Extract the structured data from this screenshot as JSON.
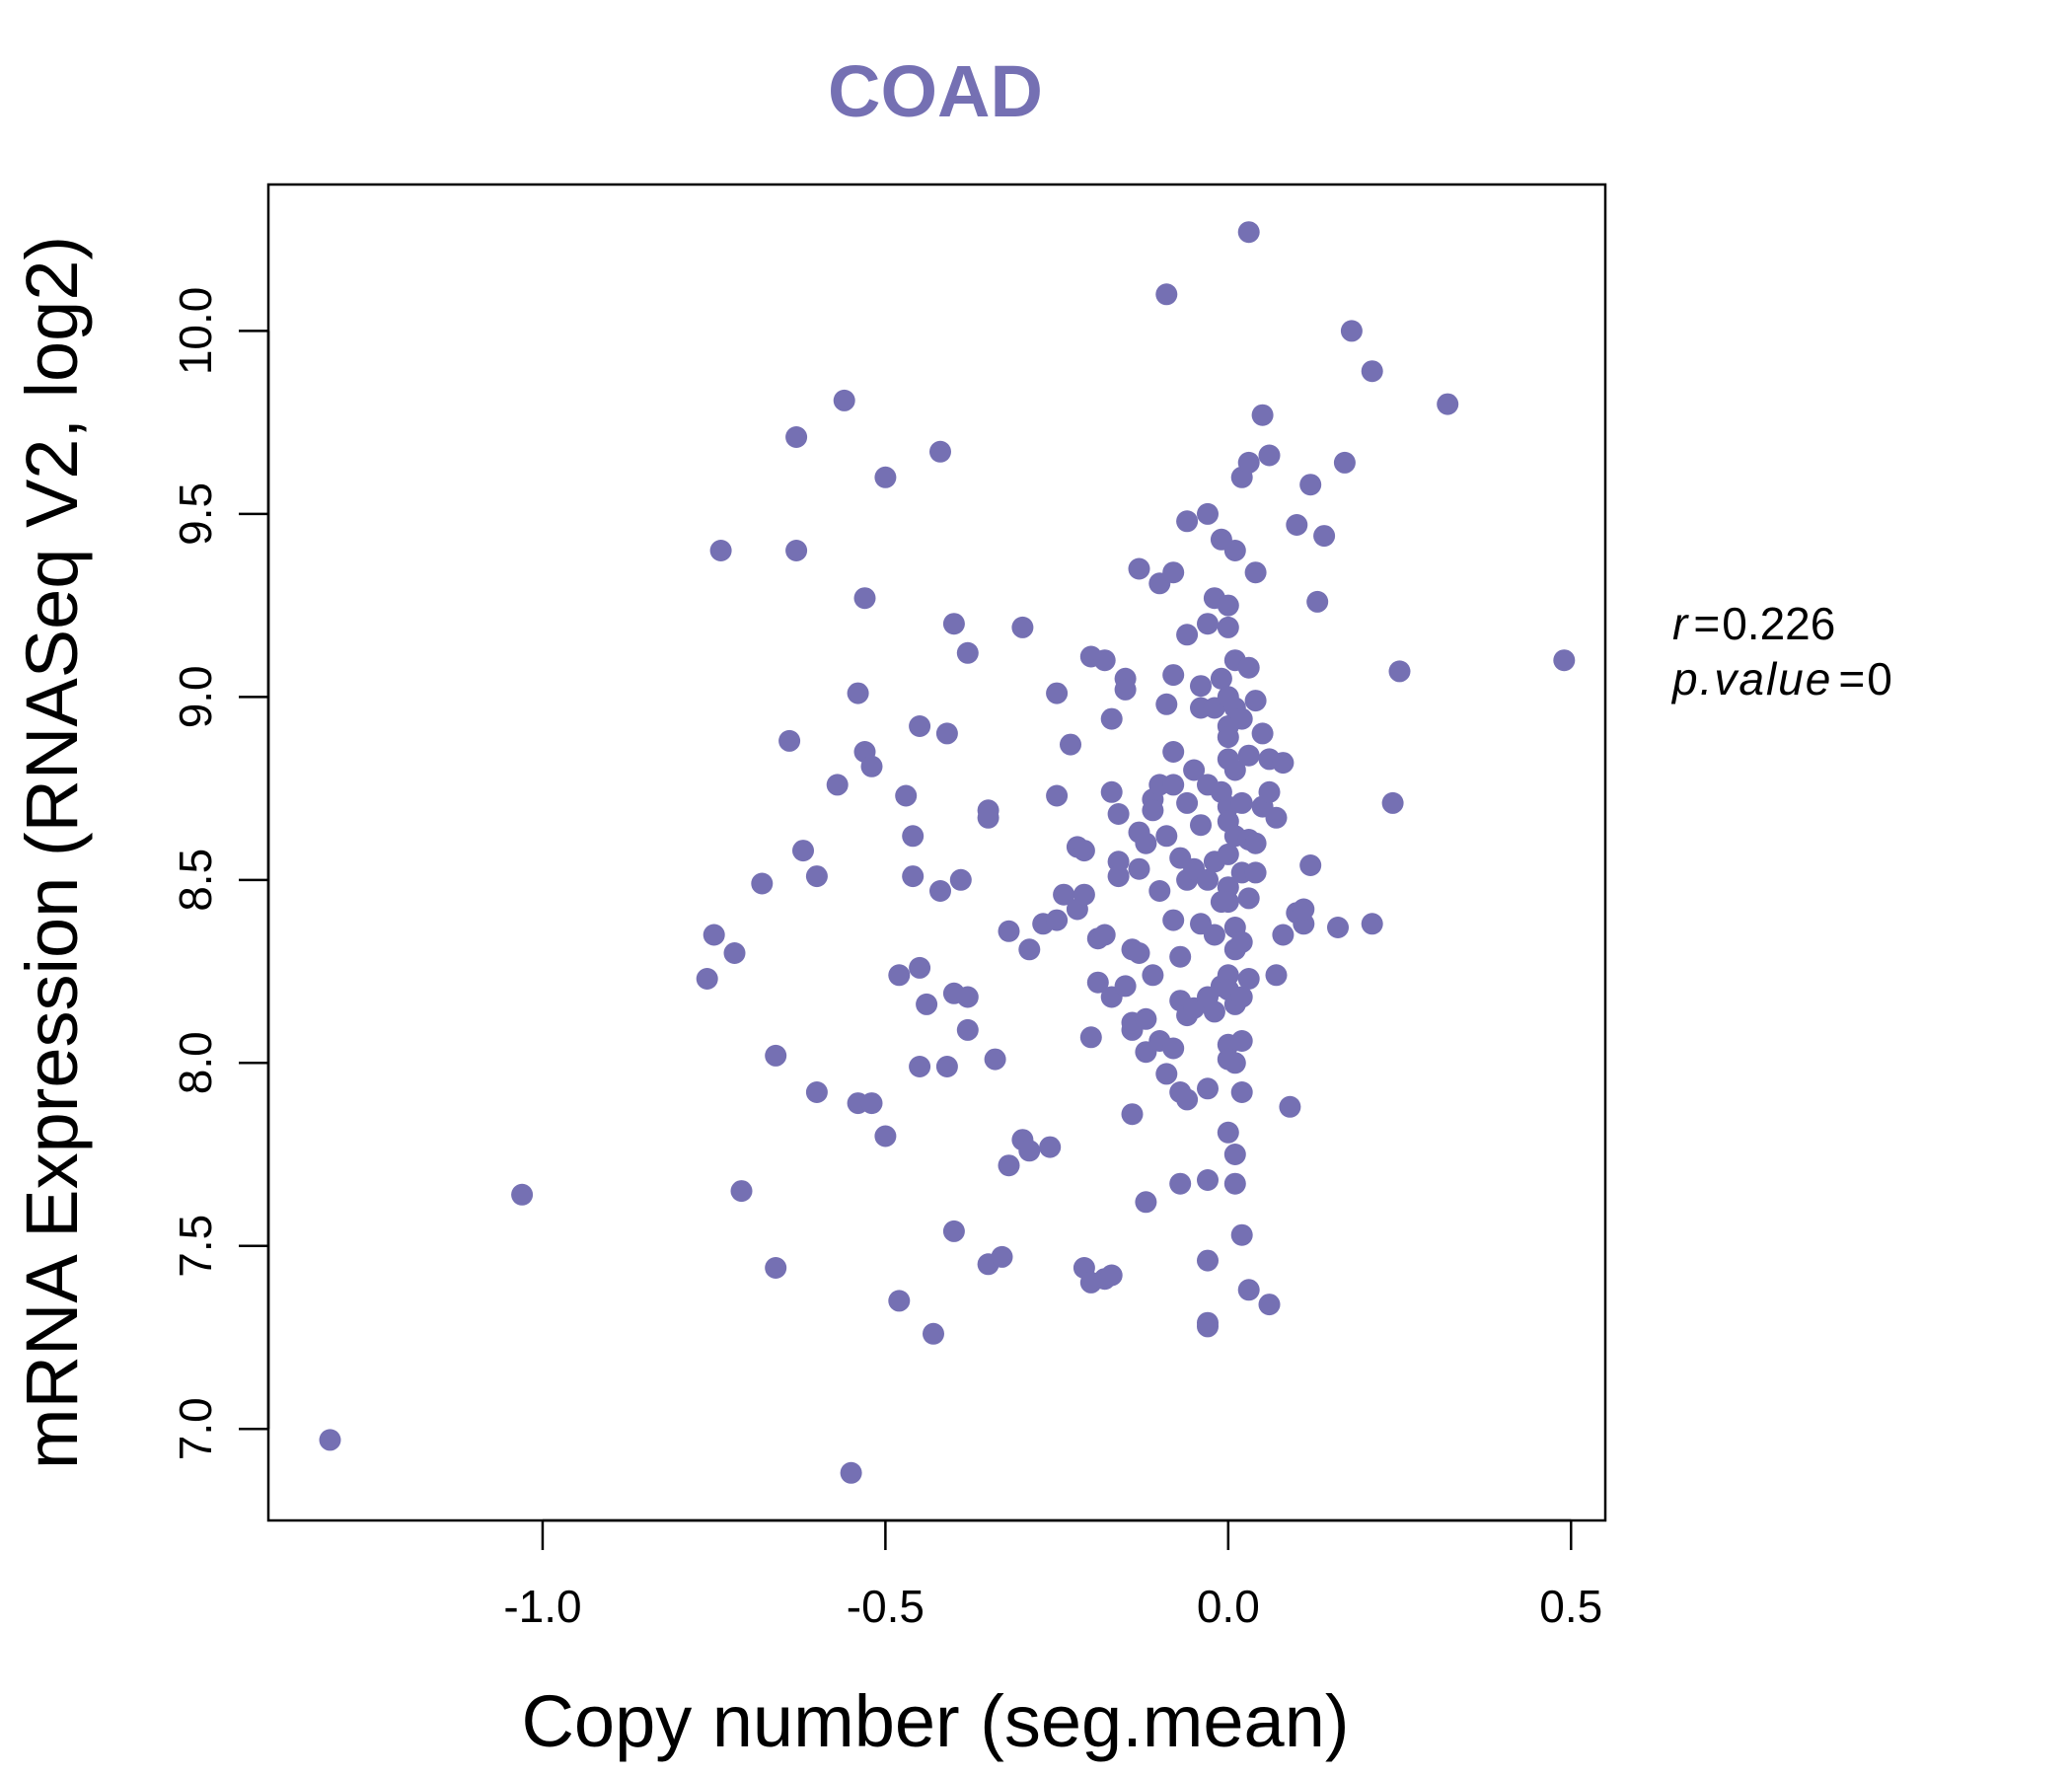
{
  "chart_data": {
    "type": "scatter",
    "title": "COAD",
    "xlabel": "Copy number (seg.mean)",
    "ylabel": "mRNA Expression (RNASeq V2, log2)",
    "xlim": [
      -1.4,
      0.55
    ],
    "ylim": [
      6.75,
      10.4
    ],
    "xticks": [
      -1.0,
      -0.5,
      0.0,
      0.5
    ],
    "xtick_labels": [
      "-1.0",
      "-0.5",
      "0.0",
      "0.5"
    ],
    "yticks": [
      7.0,
      7.5,
      8.0,
      8.5,
      9.0,
      9.5,
      10.0
    ],
    "ytick_labels": [
      "7.0",
      "7.5",
      "8.0",
      "8.5",
      "9.0",
      "9.5",
      "10.0"
    ],
    "grid": false,
    "point_color": "#7570b3",
    "annotation": {
      "r_label": "r",
      "r_value": "0.226",
      "p_label": "p.value",
      "p_value": "0"
    },
    "points": [
      [
        -1.31,
        6.97
      ],
      [
        -1.03,
        7.64
      ],
      [
        -0.76,
        8.23
      ],
      [
        -0.75,
        8.35
      ],
      [
        -0.74,
        9.4
      ],
      [
        -0.72,
        8.3
      ],
      [
        -0.71,
        7.65
      ],
      [
        -0.68,
        8.49
      ],
      [
        -0.66,
        8.02
      ],
      [
        -0.66,
        7.44
      ],
      [
        -0.64,
        8.88
      ],
      [
        -0.63,
        9.71
      ],
      [
        -0.63,
        9.4
      ],
      [
        -0.62,
        8.58
      ],
      [
        -0.6,
        8.51
      ],
      [
        -0.6,
        7.92
      ],
      [
        -0.57,
        8.76
      ],
      [
        -0.56,
        9.81
      ],
      [
        -0.55,
        6.88
      ],
      [
        -0.54,
        9.01
      ],
      [
        -0.54,
        7.89
      ],
      [
        -0.53,
        8.85
      ],
      [
        -0.53,
        9.27
      ],
      [
        -0.52,
        8.81
      ],
      [
        -0.52,
        7.89
      ],
      [
        -0.5,
        9.6
      ],
      [
        -0.5,
        7.8
      ],
      [
        -0.48,
        8.24
      ],
      [
        -0.48,
        7.35
      ],
      [
        -0.47,
        8.73
      ],
      [
        -0.46,
        8.62
      ],
      [
        -0.46,
        8.51
      ],
      [
        -0.45,
        8.92
      ],
      [
        -0.45,
        8.26
      ],
      [
        -0.45,
        7.99
      ],
      [
        -0.44,
        8.16
      ],
      [
        -0.43,
        7.26
      ],
      [
        -0.42,
        8.47
      ],
      [
        -0.42,
        9.67
      ],
      [
        -0.41,
        8.9
      ],
      [
        -0.41,
        7.99
      ],
      [
        -0.4,
        9.2
      ],
      [
        -0.4,
        8.19
      ],
      [
        -0.4,
        7.54
      ],
      [
        -0.39,
        8.5
      ],
      [
        -0.38,
        9.12
      ],
      [
        -0.38,
        8.18
      ],
      [
        -0.38,
        8.09
      ],
      [
        -0.35,
        8.67
      ],
      [
        -0.35,
        8.69
      ],
      [
        -0.35,
        7.45
      ],
      [
        -0.34,
        8.01
      ],
      [
        -0.33,
        7.47
      ],
      [
        -0.32,
        8.36
      ],
      [
        -0.32,
        7.72
      ],
      [
        -0.3,
        9.19
      ],
      [
        -0.3,
        7.79
      ],
      [
        -0.29,
        8.31
      ],
      [
        -0.29,
        7.76
      ],
      [
        -0.27,
        8.38
      ],
      [
        -0.26,
        7.77
      ],
      [
        -0.25,
        9.01
      ],
      [
        -0.25,
        8.73
      ],
      [
        -0.25,
        8.39
      ],
      [
        -0.24,
        8.46
      ],
      [
        -0.23,
        8.87
      ],
      [
        -0.22,
        8.42
      ],
      [
        -0.22,
        8.59
      ],
      [
        -0.21,
        8.58
      ],
      [
        -0.21,
        8.46
      ],
      [
        -0.21,
        7.44
      ],
      [
        -0.2,
        9.11
      ],
      [
        -0.2,
        8.07
      ],
      [
        -0.2,
        7.4
      ],
      [
        -0.19,
        8.34
      ],
      [
        -0.19,
        8.22
      ],
      [
        -0.18,
        9.1
      ],
      [
        -0.18,
        8.35
      ],
      [
        -0.18,
        7.41
      ],
      [
        -0.17,
        8.94
      ],
      [
        -0.17,
        8.74
      ],
      [
        -0.17,
        8.18
      ],
      [
        -0.17,
        7.42
      ],
      [
        -0.16,
        8.55
      ],
      [
        -0.16,
        8.51
      ],
      [
        -0.16,
        8.68
      ],
      [
        -0.15,
        9.05
      ],
      [
        -0.15,
        9.02
      ],
      [
        -0.15,
        8.21
      ],
      [
        -0.14,
        8.31
      ],
      [
        -0.14,
        8.09
      ],
      [
        -0.14,
        8.11
      ],
      [
        -0.14,
        7.86
      ],
      [
        -0.13,
        9.35
      ],
      [
        -0.13,
        8.63
      ],
      [
        -0.13,
        8.53
      ],
      [
        -0.13,
        8.3
      ],
      [
        -0.12,
        8.6
      ],
      [
        -0.12,
        8.12
      ],
      [
        -0.12,
        8.03
      ],
      [
        -0.12,
        7.62
      ],
      [
        -0.11,
        8.72
      ],
      [
        -0.11,
        8.69
      ],
      [
        -0.11,
        8.24
      ],
      [
        -0.1,
        9.31
      ],
      [
        -0.1,
        8.76
      ],
      [
        -0.1,
        8.47
      ],
      [
        -0.1,
        8.06
      ],
      [
        -0.09,
        10.1
      ],
      [
        -0.09,
        8.98
      ],
      [
        -0.09,
        8.62
      ],
      [
        -0.09,
        7.97
      ],
      [
        -0.08,
        9.34
      ],
      [
        -0.08,
        9.06
      ],
      [
        -0.08,
        8.85
      ],
      [
        -0.08,
        8.76
      ],
      [
        -0.08,
        8.39
      ],
      [
        -0.08,
        8.04
      ],
      [
        -0.07,
        8.29
      ],
      [
        -0.07,
        8.17
      ],
      [
        -0.07,
        7.92
      ],
      [
        -0.07,
        7.67
      ],
      [
        -0.07,
        8.56
      ],
      [
        -0.06,
        9.48
      ],
      [
        -0.06,
        9.17
      ],
      [
        -0.06,
        8.71
      ],
      [
        -0.06,
        8.5
      ],
      [
        -0.06,
        8.13
      ],
      [
        -0.06,
        7.9
      ],
      [
        -0.05,
        8.8
      ],
      [
        -0.05,
        8.53
      ],
      [
        -0.05,
        8.15
      ],
      [
        -0.04,
        9.03
      ],
      [
        -0.04,
        8.97
      ],
      [
        -0.04,
        8.65
      ],
      [
        -0.04,
        8.38
      ],
      [
        -0.03,
        9.5
      ],
      [
        -0.03,
        9.2
      ],
      [
        -0.03,
        8.76
      ],
      [
        -0.03,
        8.5
      ],
      [
        -0.03,
        8.18
      ],
      [
        -0.03,
        7.93
      ],
      [
        -0.03,
        7.68
      ],
      [
        -0.03,
        7.46
      ],
      [
        -0.03,
        7.29
      ],
      [
        -0.03,
        7.28
      ],
      [
        -0.02,
        9.27
      ],
      [
        -0.02,
        8.97
      ],
      [
        -0.02,
        8.55
      ],
      [
        -0.02,
        8.35
      ],
      [
        -0.02,
        8.14
      ],
      [
        -0.01,
        9.43
      ],
      [
        -0.01,
        9.05
      ],
      [
        -0.01,
        8.74
      ],
      [
        -0.01,
        8.44
      ],
      [
        -0.01,
        8.21
      ],
      [
        0.0,
        9.25
      ],
      [
        0.0,
        9.19
      ],
      [
        0.0,
        9.0
      ],
      [
        0.0,
        8.92
      ],
      [
        0.0,
        8.89
      ],
      [
        0.0,
        8.83
      ],
      [
        0.0,
        8.7
      ],
      [
        0.0,
        8.66
      ],
      [
        0.0,
        8.57
      ],
      [
        0.0,
        8.48
      ],
      [
        0.0,
        8.44
      ],
      [
        0.0,
        8.24
      ],
      [
        0.0,
        8.2
      ],
      [
        0.0,
        8.05
      ],
      [
        0.0,
        8.01
      ],
      [
        0.0,
        7.81
      ],
      [
        0.01,
        9.4
      ],
      [
        0.01,
        9.1
      ],
      [
        0.01,
        8.97
      ],
      [
        0.01,
        8.8
      ],
      [
        0.01,
        8.62
      ],
      [
        0.01,
        8.37
      ],
      [
        0.01,
        8.31
      ],
      [
        0.01,
        8.16
      ],
      [
        0.01,
        8.0
      ],
      [
        0.01,
        7.75
      ],
      [
        0.01,
        7.67
      ],
      [
        0.02,
        8.94
      ],
      [
        0.02,
        8.71
      ],
      [
        0.02,
        8.52
      ],
      [
        0.02,
        8.33
      ],
      [
        0.02,
        8.18
      ],
      [
        0.02,
        8.06
      ],
      [
        0.02,
        7.92
      ],
      [
        0.02,
        7.53
      ],
      [
        0.02,
        9.6
      ],
      [
        0.03,
        9.64
      ],
      [
        0.03,
        9.08
      ],
      [
        0.03,
        8.84
      ],
      [
        0.03,
        8.61
      ],
      [
        0.03,
        8.45
      ],
      [
        0.03,
        8.23
      ],
      [
        0.03,
        7.38
      ],
      [
        0.03,
        10.27
      ],
      [
        0.04,
        9.34
      ],
      [
        0.04,
        8.99
      ],
      [
        0.04,
        8.6
      ],
      [
        0.04,
        8.52
      ],
      [
        0.05,
        9.77
      ],
      [
        0.05,
        8.9
      ],
      [
        0.05,
        8.7
      ],
      [
        0.06,
        9.66
      ],
      [
        0.06,
        8.83
      ],
      [
        0.06,
        8.74
      ],
      [
        0.06,
        7.34
      ],
      [
        0.07,
        8.24
      ],
      [
        0.07,
        8.67
      ],
      [
        0.08,
        8.82
      ],
      [
        0.08,
        8.35
      ],
      [
        0.09,
        7.88
      ],
      [
        0.1,
        8.41
      ],
      [
        0.1,
        9.47
      ],
      [
        0.11,
        8.38
      ],
      [
        0.11,
        8.42
      ],
      [
        0.12,
        8.54
      ],
      [
        0.12,
        9.58
      ],
      [
        0.13,
        9.26
      ],
      [
        0.14,
        9.44
      ],
      [
        0.16,
        8.37
      ],
      [
        0.17,
        9.64
      ],
      [
        0.18,
        10.0
      ],
      [
        0.21,
        8.38
      ],
      [
        0.21,
        9.89
      ],
      [
        0.24,
        8.71
      ],
      [
        0.25,
        9.07
      ],
      [
        0.32,
        9.8
      ],
      [
        0.49,
        9.1
      ]
    ]
  }
}
